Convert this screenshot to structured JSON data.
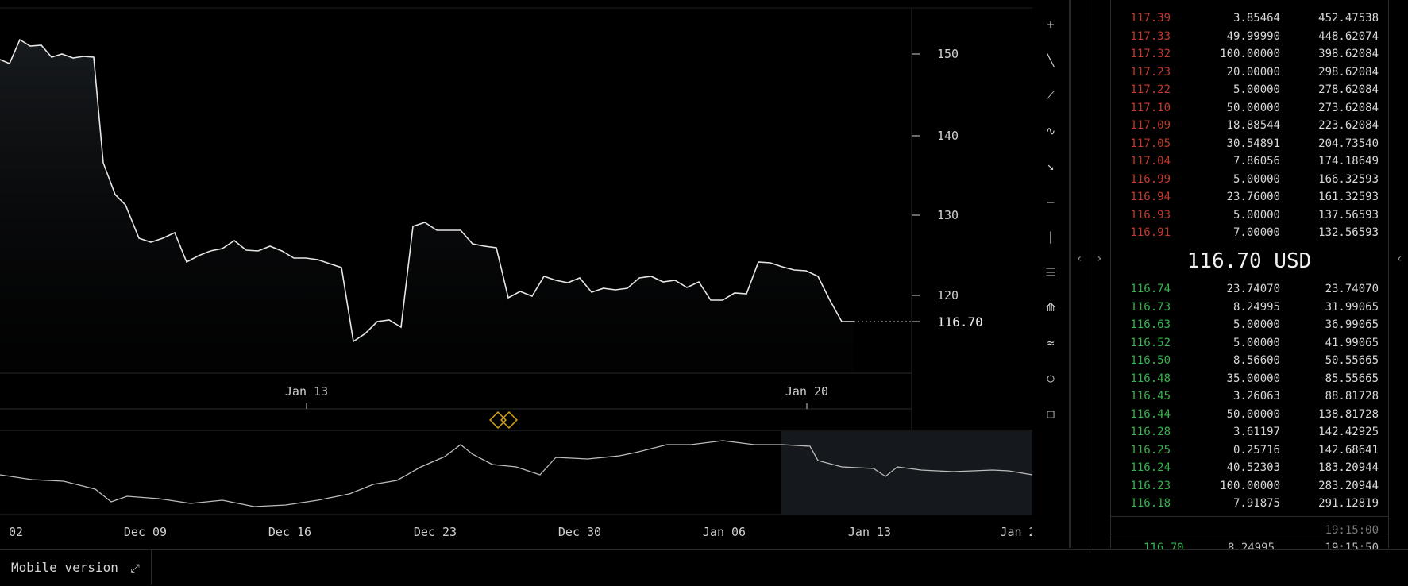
{
  "chart": {
    "last_price_label": "116.70",
    "y_ticks": [
      "150",
      "140",
      "130",
      "120"
    ],
    "main_x_labels": [
      "Jan 13",
      "Jan 20"
    ],
    "nav_x_labels": [
      "02",
      "Dec 09",
      "Dec 16",
      "Dec 23",
      "Dec 30",
      "Jan 06",
      "Jan 13",
      "Jan 2"
    ]
  },
  "toolbar": {
    "tools": [
      "crosshair-icon",
      "line-icon",
      "ray-icon",
      "curve-icon",
      "arrow-icon",
      "horizontal-line-icon",
      "vertical-line-icon",
      "parallel-lines-icon",
      "fan-icon",
      "fibonacci-icon",
      "circle-icon",
      "rectangle-icon"
    ]
  },
  "orderbook": {
    "asks": [
      {
        "price": "117.39",
        "amount": "3.85464",
        "total": "452.47538"
      },
      {
        "price": "117.33",
        "amount": "49.99990",
        "total": "448.62074"
      },
      {
        "price": "117.32",
        "amount": "100.00000",
        "total": "398.62084"
      },
      {
        "price": "117.23",
        "amount": "20.00000",
        "total": "298.62084"
      },
      {
        "price": "117.22",
        "amount": "5.00000",
        "total": "278.62084"
      },
      {
        "price": "117.10",
        "amount": "50.00000",
        "total": "273.62084"
      },
      {
        "price": "117.09",
        "amount": "18.88544",
        "total": "223.62084"
      },
      {
        "price": "117.05",
        "amount": "30.54891",
        "total": "204.73540"
      },
      {
        "price": "117.04",
        "amount": "7.86056",
        "total": "174.18649"
      },
      {
        "price": "116.99",
        "amount": "5.00000",
        "total": "166.32593"
      },
      {
        "price": "116.94",
        "amount": "23.76000",
        "total": "161.32593"
      },
      {
        "price": "116.93",
        "amount": "5.00000",
        "total": "137.56593"
      },
      {
        "price": "116.91",
        "amount": "7.00000",
        "total": "132.56593"
      }
    ],
    "mid_price": "116.70 USD",
    "bids": [
      {
        "price": "116.74",
        "amount": "23.74070",
        "total": "23.74070"
      },
      {
        "price": "116.73",
        "amount": "8.24995",
        "total": "31.99065"
      },
      {
        "price": "116.63",
        "amount": "5.00000",
        "total": "36.99065"
      },
      {
        "price": "116.52",
        "amount": "5.00000",
        "total": "41.99065"
      },
      {
        "price": "116.50",
        "amount": "8.56600",
        "total": "50.55665"
      },
      {
        "price": "116.48",
        "amount": "35.00000",
        "total": "85.55665"
      },
      {
        "price": "116.45",
        "amount": "3.26063",
        "total": "88.81728"
      },
      {
        "price": "116.44",
        "amount": "50.00000",
        "total": "138.81728"
      },
      {
        "price": "116.28",
        "amount": "3.61197",
        "total": "142.42925"
      },
      {
        "price": "116.25",
        "amount": "0.25716",
        "total": "142.68641"
      },
      {
        "price": "116.24",
        "amount": "40.52303",
        "total": "183.20944"
      },
      {
        "price": "116.23",
        "amount": "100.00000",
        "total": "283.20944"
      },
      {
        "price": "116.18",
        "amount": "7.91875",
        "total": "291.12819"
      }
    ],
    "trades_time": "19:15:00",
    "last_trade": {
      "price": "116.70",
      "amount": "8.24995",
      "time": "19:15:50"
    }
  },
  "bottom": {
    "mobile_label": "Mobile version"
  }
}
